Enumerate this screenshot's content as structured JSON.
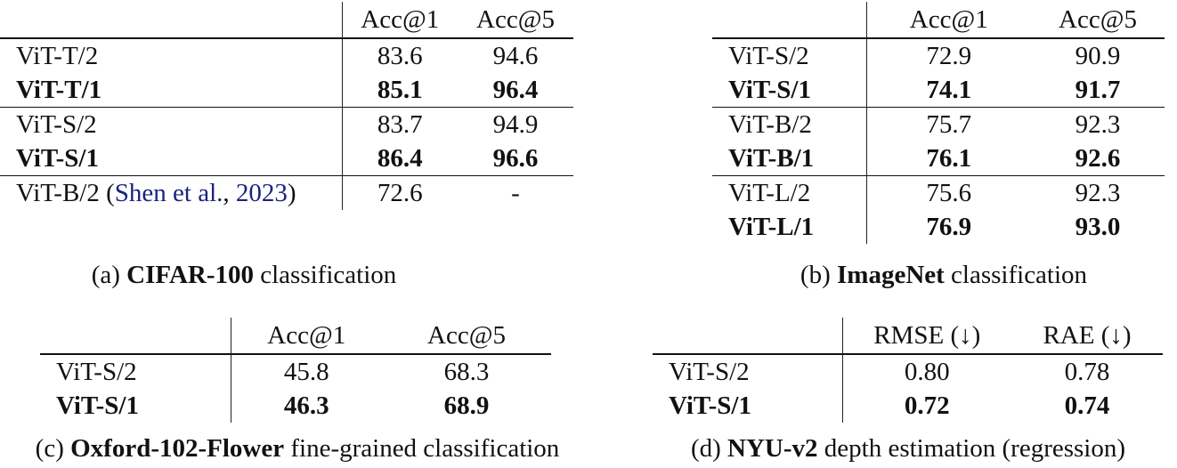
{
  "panel_a": {
    "headers": [
      "Acc@1",
      "Acc@5"
    ],
    "rows": [
      {
        "model": "ViT-T/2",
        "acc1": "83.6",
        "acc5": "94.6"
      },
      {
        "model": "ViT-T/1",
        "acc1": "85.1",
        "acc5": "96.4"
      },
      {
        "model": "ViT-S/2",
        "acc1": "83.7",
        "acc5": "94.9"
      },
      {
        "model": "ViT-S/1",
        "acc1": "86.4",
        "acc5": "96.6"
      },
      {
        "model": "ViT-B/2 (",
        "cite_author": "Shen et al.",
        "cite_sep": ", ",
        "cite_year": "2023",
        "cite_close": ")",
        "acc1": "72.6",
        "acc5": "-"
      }
    ],
    "caption_prefix": "(a) ",
    "caption_bold": "CIFAR-100",
    "caption_suffix": " classification"
  },
  "panel_b": {
    "headers": [
      "Acc@1",
      "Acc@5"
    ],
    "rows": [
      {
        "model": "ViT-S/2",
        "acc1": "72.9",
        "acc5": "90.9"
      },
      {
        "model": "ViT-S/1",
        "acc1": "74.1",
        "acc5": "91.7"
      },
      {
        "model": "ViT-B/2",
        "acc1": "75.7",
        "acc5": "92.3"
      },
      {
        "model": "ViT-B/1",
        "acc1": "76.1",
        "acc5": "92.6"
      },
      {
        "model": "ViT-L/2",
        "acc1": "75.6",
        "acc5": "92.3"
      },
      {
        "model": "ViT-L/1",
        "acc1": "76.9",
        "acc5": "93.0"
      }
    ],
    "caption_prefix": "(b) ",
    "caption_bold": "ImageNet",
    "caption_suffix": " classification"
  },
  "panel_c": {
    "headers": [
      "Acc@1",
      "Acc@5"
    ],
    "rows": [
      {
        "model": "ViT-S/2",
        "acc1": "45.8",
        "acc5": "68.3"
      },
      {
        "model": "ViT-S/1",
        "acc1": "46.3",
        "acc5": "68.9"
      }
    ],
    "caption_prefix": "(c) ",
    "caption_bold": "Oxford-102-Flower",
    "caption_suffix": " fine-grained classification"
  },
  "panel_d": {
    "headers": [
      "RMSE (↓)",
      "RAE (↓)"
    ],
    "rows": [
      {
        "model": "ViT-S/2",
        "rmse": "0.80",
        "rae": "0.78"
      },
      {
        "model": "ViT-S/1",
        "rmse": "0.72",
        "rae": "0.74"
      }
    ],
    "caption_prefix": "(d) ",
    "caption_bold": "NYU-v2",
    "caption_suffix": " depth estimation (regression)"
  }
}
